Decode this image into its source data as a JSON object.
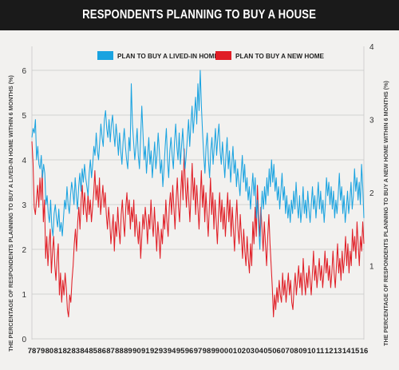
{
  "title": "RESPONDENTS PLANNING TO BUY A HOUSE",
  "colors": {
    "header_bg": "#1a1a1a",
    "background": "#f2f1ef",
    "series_lived_in": "#1aa3e0",
    "series_new": "#e01e26",
    "grid": "#c9c9c9"
  },
  "chart_data": {
    "type": "line",
    "title": "RESPONDENTS PLANNING TO BUY A HOUSE",
    "xlabel": "",
    "ylabel_left": "THE PERCENTAGE OF RESPONDENTS PLANNING TO BUY A LIVED-IN HOME WITHIN 6 MONTHS (%)",
    "ylabel_right": "THE PERCENTAGE OF RESPONDENTS PLANNING TO BUY A NEW HOME WITHIN 6 MONTHS (%)",
    "ylim_left": [
      0,
      6.5
    ],
    "ylim_right": [
      0,
      4
    ],
    "yticks_left": [
      "0",
      "1",
      "2",
      "3",
      "4",
      "5",
      "6"
    ],
    "yticks_right": [
      "1",
      "2",
      "3",
      "4"
    ],
    "grid": true,
    "legend_position": "top-center",
    "x_start": 1978,
    "x_end": 2016,
    "xtick_labels": [
      "78",
      "79",
      "80",
      "81",
      "82",
      "83",
      "84",
      "85",
      "86",
      "87",
      "88",
      "89",
      "90",
      "91",
      "92",
      "93",
      "94",
      "95",
      "96",
      "97",
      "98",
      "99",
      "00",
      "01",
      "02",
      "03",
      "04",
      "05",
      "06",
      "07",
      "08",
      "09",
      "10",
      "11",
      "12",
      "13",
      "14",
      "15",
      "16"
    ],
    "series": [
      {
        "name": "PLAN TO BUY A LIVED-IN HOME",
        "axis": "left",
        "values": [
          4.5,
          4.7,
          4.6,
          4.9,
          4.0,
          4.3,
          3.9,
          3.8,
          4.1,
          3.6,
          3.9,
          3.7,
          3.0,
          3.2,
          2.8,
          2.6,
          3.1,
          2.5,
          2.3,
          2.8,
          3.0,
          2.7,
          2.5,
          2.9,
          2.4,
          2.6,
          2.3,
          2.7,
          3.1,
          2.9,
          3.4,
          3.0,
          2.8,
          3.2,
          3.5,
          3.3,
          3.0,
          3.6,
          3.2,
          2.9,
          3.4,
          3.7,
          3.3,
          3.8,
          3.5,
          3.9,
          3.6,
          3.4,
          3.2,
          3.7,
          4.0,
          3.6,
          3.9,
          4.3,
          4.1,
          4.6,
          4.2,
          4.0,
          4.4,
          4.8,
          4.5,
          4.3,
          4.9,
          5.1,
          4.7,
          4.5,
          4.9,
          4.4,
          4.8,
          5.0,
          4.6,
          4.3,
          4.8,
          4.5,
          4.1,
          4.6,
          4.2,
          3.9,
          4.4,
          4.7,
          4.3,
          4.0,
          3.8,
          4.5,
          4.2,
          5.7,
          4.8,
          4.4,
          4.0,
          4.3,
          4.7,
          4.1,
          3.8,
          4.5,
          5.2,
          4.6,
          4.0,
          4.3,
          3.7,
          4.1,
          4.5,
          3.9,
          4.2,
          3.6,
          4.0,
          4.4,
          3.8,
          4.1,
          4.6,
          4.2,
          3.7,
          4.0,
          3.4,
          3.8,
          4.3,
          4.7,
          4.0,
          3.6,
          4.2,
          4.5,
          4.1,
          3.8,
          4.4,
          4.8,
          4.3,
          4.0,
          4.6,
          3.9,
          4.3,
          4.7,
          4.2,
          3.8,
          4.1,
          4.5,
          4.9,
          4.3,
          4.8,
          5.2,
          4.6,
          5.0,
          5.4,
          4.8,
          5.7,
          5.1,
          6.0,
          5.2,
          4.6,
          4.1,
          3.7,
          4.3,
          4.6,
          4.0,
          3.6,
          4.2,
          4.5,
          3.9,
          4.3,
          4.7,
          4.1,
          4.5,
          4.8,
          4.2,
          3.9,
          4.4,
          4.0,
          3.6,
          4.1,
          4.5,
          3.8,
          4.2,
          3.5,
          3.9,
          4.3,
          3.7,
          4.0,
          3.4,
          3.8,
          3.5,
          3.2,
          3.7,
          4.1,
          3.5,
          3.9,
          3.3,
          3.6,
          3.1,
          3.4,
          2.9,
          3.3,
          3.7,
          3.2,
          3.6,
          2.7,
          3.1,
          2.5,
          2.0,
          2.8,
          3.3,
          2.9,
          3.4,
          3.0,
          3.6,
          3.2,
          3.8,
          3.4,
          4.0,
          3.5,
          3.9,
          3.3,
          3.6,
          3.1,
          3.4,
          2.9,
          3.3,
          3.7,
          3.1,
          3.4,
          2.8,
          3.2,
          2.7,
          3.0,
          2.6,
          3.1,
          2.8,
          3.3,
          2.9,
          3.5,
          3.0,
          2.7,
          3.2,
          2.6,
          2.9,
          3.4,
          2.8,
          3.1,
          2.7,
          3.3,
          2.9,
          2.6,
          3.0,
          3.4,
          2.9,
          3.2,
          2.7,
          3.1,
          3.5,
          2.9,
          3.3,
          2.8,
          3.1,
          2.6,
          3.0,
          3.6,
          3.2,
          3.5,
          3.0,
          3.4,
          2.9,
          3.3,
          2.7,
          3.1,
          2.8,
          3.2,
          3.7,
          3.1,
          3.4,
          2.8,
          3.2,
          2.6,
          2.9,
          3.3,
          2.8,
          3.1,
          3.5,
          2.9,
          3.2,
          3.8,
          3.3,
          3.6,
          3.1,
          3.5,
          3.0,
          3.9,
          3.4,
          2.7
        ]
      },
      {
        "name": "PLAN TO BUY A NEW HOME",
        "axis": "right",
        "values": [
          2.7,
          2.4,
          1.8,
          1.7,
          1.9,
          2.1,
          1.8,
          2.2,
          1.9,
          2.3,
          1.6,
          1.9,
          1.1,
          1.4,
          1.0,
          1.3,
          1.5,
          0.9,
          1.2,
          1.4,
          1.0,
          0.8,
          1.1,
          1.3,
          0.6,
          0.9,
          0.5,
          0.8,
          0.6,
          0.9,
          0.7,
          0.4,
          0.3,
          0.6,
          0.5,
          0.8,
          1.0,
          1.3,
          1.5,
          1.2,
          1.6,
          1.8,
          1.5,
          1.9,
          2.1,
          1.7,
          2.0,
          1.8,
          1.6,
          2.0,
          1.7,
          1.9,
          1.6,
          1.8,
          2.0,
          2.3,
          1.9,
          2.1,
          1.8,
          2.2,
          1.7,
          1.9,
          2.1,
          1.8,
          2.0,
          1.7,
          1.5,
          1.8,
          1.6,
          1.3,
          1.5,
          1.7,
          1.2,
          1.6,
          1.4,
          1.8,
          1.5,
          1.3,
          1.7,
          1.9,
          1.6,
          1.4,
          1.8,
          2.0,
          1.7,
          1.9,
          1.5,
          1.8,
          1.6,
          1.9,
          1.4,
          1.7,
          1.5,
          1.3,
          1.6,
          1.1,
          1.4,
          1.7,
          1.5,
          1.8,
          1.6,
          1.3,
          1.7,
          1.5,
          1.9,
          1.6,
          1.4,
          1.8,
          1.5,
          1.2,
          1.6,
          1.4,
          1.1,
          1.5,
          1.3,
          1.7,
          1.5,
          1.9,
          1.6,
          1.4,
          1.8,
          2.0,
          1.7,
          2.1,
          1.8,
          1.5,
          1.9,
          2.2,
          1.8,
          1.6,
          2.0,
          2.3,
          1.9,
          2.6,
          2.1,
          1.8,
          2.2,
          1.9,
          1.6,
          2.0,
          2.4,
          1.9,
          2.2,
          1.7,
          2.1,
          1.8,
          1.5,
          1.9,
          2.3,
          1.8,
          2.1,
          1.6,
          2.0,
          1.7,
          1.4,
          1.8,
          2.2,
          1.7,
          2.0,
          1.5,
          1.9,
          1.6,
          1.3,
          1.7,
          2.0,
          1.6,
          1.9,
          1.5,
          1.8,
          1.4,
          1.7,
          2.0,
          1.6,
          1.9,
          1.4,
          1.8,
          1.5,
          1.2,
          1.6,
          1.9,
          1.5,
          1.3,
          1.7,
          1.4,
          1.1,
          1.5,
          1.2,
          1.0,
          1.4,
          1.1,
          0.9,
          1.3,
          1.0,
          1.6,
          1.3,
          1.8,
          1.4,
          2.1,
          1.7,
          1.4,
          1.8,
          1.5,
          1.2,
          1.6,
          1.3,
          1.0,
          1.4,
          1.7,
          1.3,
          1.0,
          0.7,
          0.3,
          0.6,
          0.4,
          0.7,
          0.5,
          0.8,
          0.6,
          0.5,
          0.9,
          0.6,
          0.8,
          0.5,
          0.7,
          0.9,
          0.6,
          0.8,
          0.5,
          0.4,
          0.7,
          0.9,
          0.6,
          0.8,
          1.0,
          0.7,
          0.9,
          0.6,
          1.1,
          0.8,
          0.6,
          0.9,
          0.7,
          1.0,
          0.8,
          0.6,
          0.9,
          1.2,
          0.8,
          1.0,
          0.7,
          0.9,
          1.1,
          0.8,
          1.0,
          0.7,
          0.9,
          1.2,
          0.9,
          1.1,
          0.8,
          1.0,
          0.7,
          0.9,
          1.2,
          0.9,
          0.7,
          1.0,
          1.3,
          0.9,
          1.1,
          0.8,
          1.2,
          0.9,
          1.1,
          1.4,
          1.0,
          1.3,
          0.9,
          1.2,
          1.0,
          1.5,
          1.2,
          1.4,
          1.1,
          1.6,
          1.3,
          1.0,
          1.4,
          1.2,
          1.6,
          1.3
        ]
      }
    ]
  }
}
